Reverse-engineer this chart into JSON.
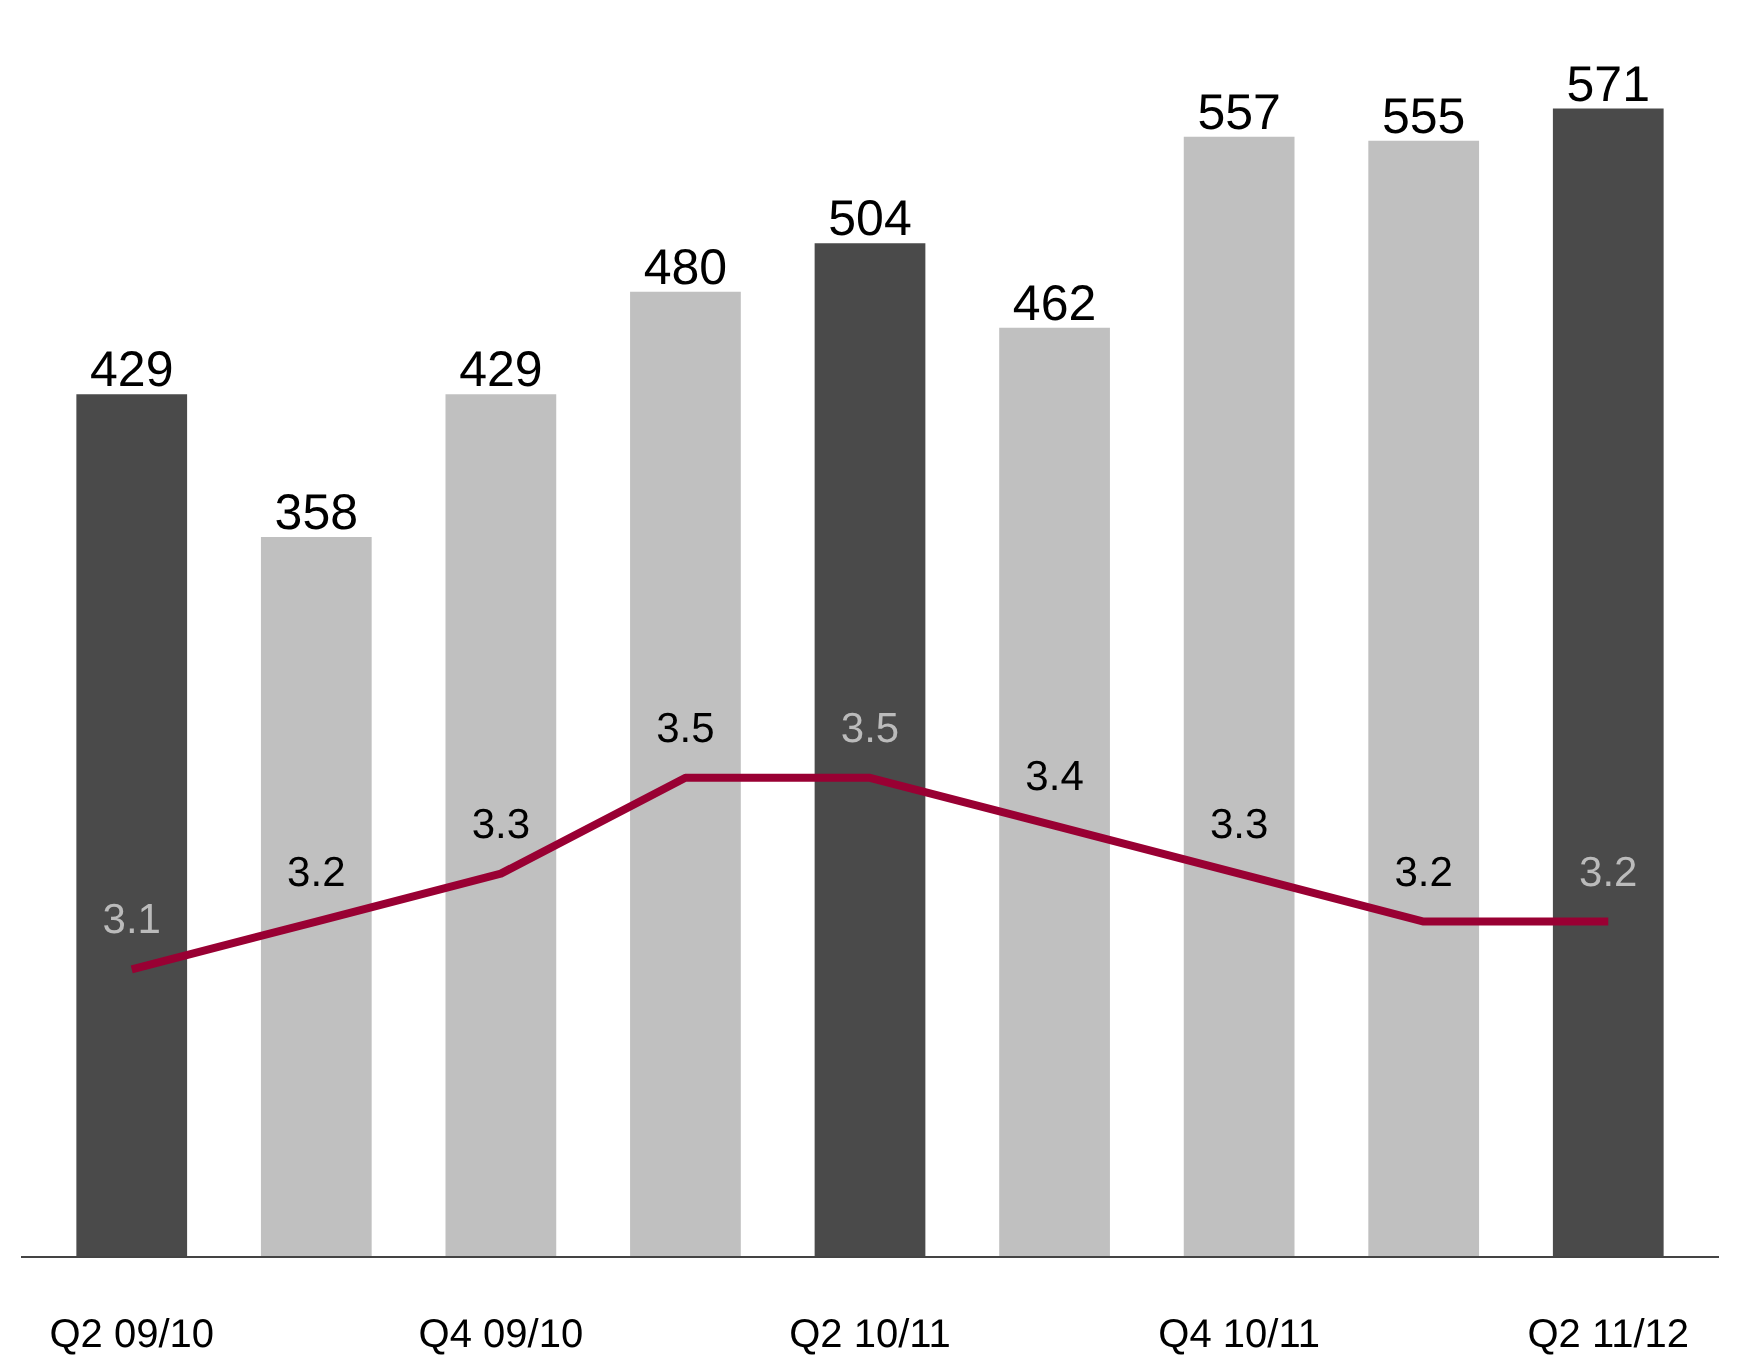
{
  "chart_data": {
    "type": "bar",
    "categories": [
      "Q2 09/10",
      null,
      "Q4 09/10",
      null,
      "Q2 10/11",
      null,
      "Q4 10/11",
      null,
      "Q2 11/12"
    ],
    "series": [
      {
        "colors": [
          "#4a4a4a",
          "#c0c0c0",
          "#c0c0c0",
          "#c0c0c0",
          "#4a4a4a",
          "#c0c0c0",
          "#c0c0c0",
          "#c0c0c0",
          "#4a4a4a"
        ],
        "values": [
          429,
          358,
          429,
          480,
          504,
          462,
          557,
          555,
          571
        ]
      },
      {
        "type": "line",
        "axis": "y2",
        "color": "#990033",
        "values": [
          3.1,
          3.2,
          3.3,
          3.5,
          3.5,
          3.4,
          3.3,
          3.2,
          3.2
        ]
      }
    ],
    "data_labels": true,
    "tick_labels": "x",
    "grid": false,
    "marker": "none",
    "line_style": "solid"
  }
}
